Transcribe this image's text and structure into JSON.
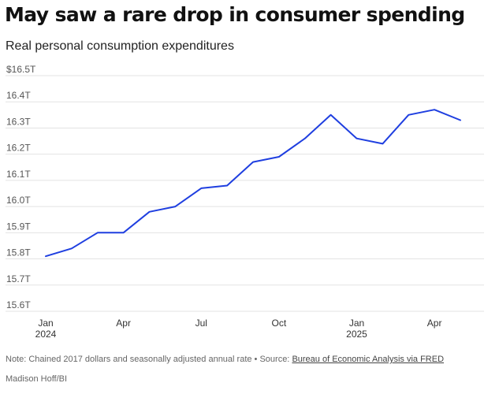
{
  "chart_data": {
    "type": "line",
    "title": "May saw a rare drop in consumer spending",
    "subtitle": "Real personal consumption expenditures",
    "x": [
      "2024-01",
      "2024-02",
      "2024-03",
      "2024-04",
      "2024-05",
      "2024-06",
      "2024-07",
      "2024-08",
      "2024-09",
      "2024-10",
      "2024-11",
      "2024-12",
      "2025-01",
      "2025-02",
      "2025-03",
      "2025-04",
      "2025-05"
    ],
    "series": [
      {
        "values": [
          15.81,
          15.84,
          15.9,
          15.9,
          15.98,
          16.0,
          16.07,
          16.08,
          16.17,
          16.19,
          16.26,
          16.35,
          16.26,
          16.24,
          16.35,
          16.37,
          16.33
        ]
      }
    ],
    "y_ticks": [
      "$16.5T",
      "16.4T",
      "16.3T",
      "16.2T",
      "16.1T",
      "16.0T",
      "15.9T",
      "15.8T",
      "15.7T",
      "15.6T"
    ],
    "y_tick_values": [
      16.5,
      16.4,
      16.3,
      16.2,
      16.1,
      16.0,
      15.9,
      15.8,
      15.7,
      15.6
    ],
    "ylim": [
      15.6,
      16.5
    ],
    "x_ticks": [
      {
        "x": "2024-01",
        "label": "Jan",
        "sublabel": "2024"
      },
      {
        "x": "2024-04",
        "label": "Apr",
        "sublabel": ""
      },
      {
        "x": "2024-07",
        "label": "Jul",
        "sublabel": ""
      },
      {
        "x": "2024-10",
        "label": "Oct",
        "sublabel": ""
      },
      {
        "x": "2025-01",
        "label": "Jan",
        "sublabel": "2025"
      },
      {
        "x": "2025-04",
        "label": "Apr",
        "sublabel": ""
      }
    ],
    "grid": true,
    "line_color": "#1f3fe0",
    "grid_color": "#e3e3e3"
  },
  "footer": {
    "note": "Note: Chained 2017 dollars and seasonally adjusted annual rate • Source: ",
    "source_link": "Bureau of Economic Analysis via FRED",
    "credit": "Madison Hoff/BI"
  }
}
